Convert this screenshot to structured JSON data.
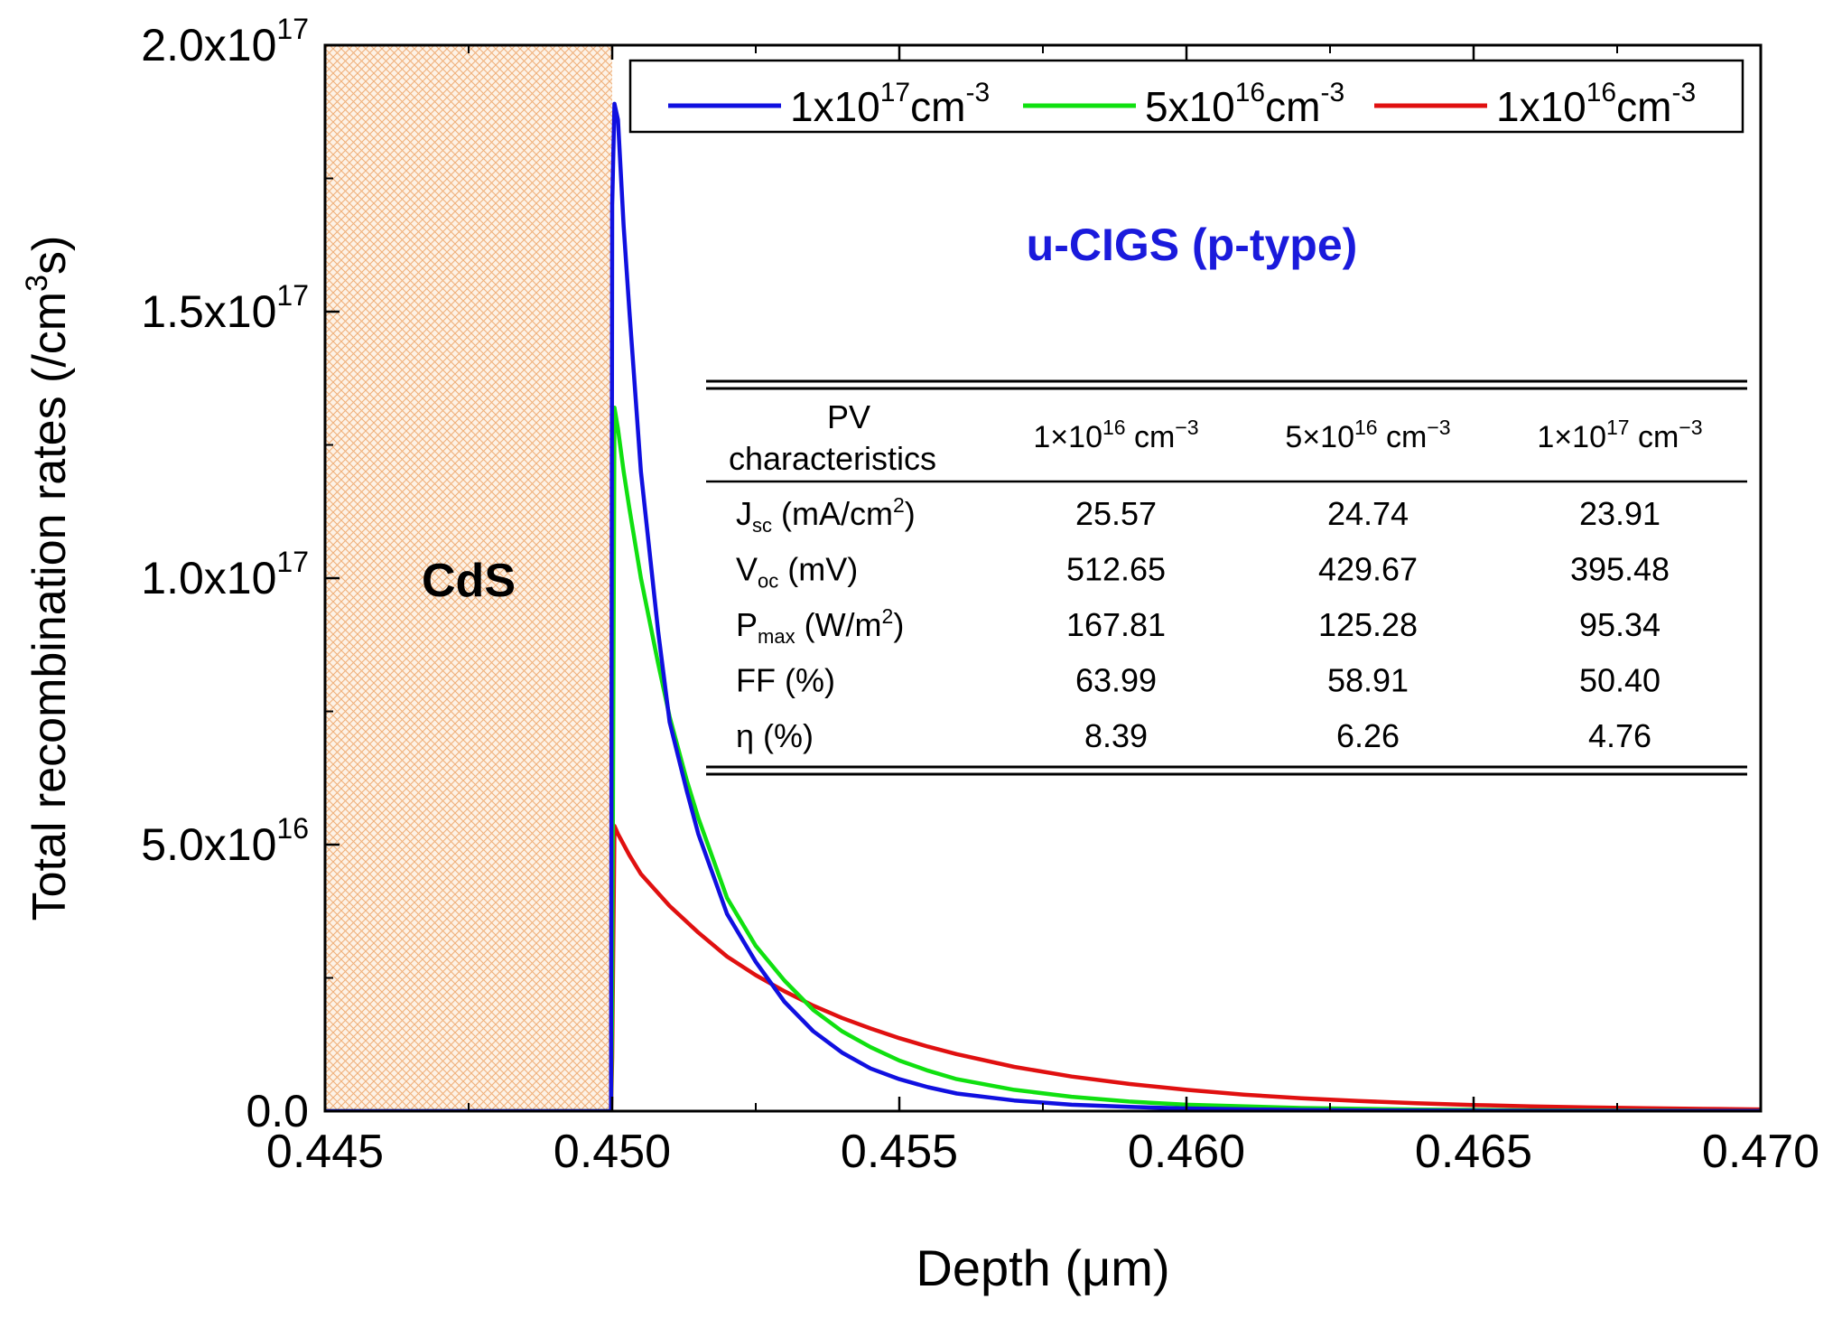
{
  "chart_data": {
    "type": "line",
    "xlabel": "Depth (μm)",
    "ylabel": "Total recombination rates (/cm³s)",
    "xlim": [
      0.445,
      0.47
    ],
    "ylim": [
      0,
      2e+17
    ],
    "x_ticks": [
      "0.445",
      "0.450",
      "0.455",
      "0.460",
      "0.465",
      "0.470"
    ],
    "x_tick_values": [
      0.445,
      0.45,
      0.455,
      0.46,
      0.465,
      0.47
    ],
    "y_ticks": [
      {
        "value": 0,
        "mantissa": "0.0",
        "exp": ""
      },
      {
        "value": 5e+16,
        "mantissa": "5.0x10",
        "exp": "16"
      },
      {
        "value": 1e+17,
        "mantissa": "1.0x10",
        "exp": "17"
      },
      {
        "value": 1.5e+17,
        "mantissa": "1.5x10",
        "exp": "17"
      },
      {
        "value": 2e+17,
        "mantissa": "2.0x10",
        "exp": "17"
      }
    ],
    "region_label": "CdS",
    "region_range": [
      0.445,
      0.45
    ],
    "annotation": "u-CIGS (p-type)",
    "annotation_color": "#1a1adc",
    "series": [
      {
        "name": "1x10¹⁷cm⁻³",
        "legend_base": "1x10",
        "legend_exp": "17",
        "legend_unit": "cm",
        "legend_unit_exp": "-3",
        "color": "#1010e0",
        "x": [
          0.445,
          0.44998,
          0.45,
          0.45004,
          0.4501,
          0.4502,
          0.4503,
          0.4505,
          0.4508,
          0.451,
          0.4513,
          0.4515,
          0.4518,
          0.452,
          0.4525,
          0.453,
          0.4535,
          0.454,
          0.4545,
          0.455,
          0.4555,
          0.456,
          0.457,
          0.458,
          0.459,
          0.46,
          0.462,
          0.464,
          0.466,
          0.468,
          0.47
        ],
        "values": [
          0,
          0,
          1.7e+17,
          1.89e+17,
          1.86e+17,
          1.66e+17,
          1.5e+17,
          1.2e+17,
          9e+16,
          7.3e+16,
          6e+16,
          5.2e+16,
          4.3e+16,
          3.7e+16,
          2.8e+16,
          2.05e+16,
          1.5e+16,
          1.1e+16,
          8000000000000000.0,
          6000000000000000.0,
          4500000000000000.0,
          3300000000000000.0,
          2000000000000000.0,
          1200000000000000.0,
          800000000000000.0,
          500000000000000.0,
          200000000000000.0,
          100000000000000.0,
          50000000000000.0,
          20000000000000.0,
          10000000000000.0
        ]
      },
      {
        "name": "5x10¹⁶cm⁻³",
        "legend_base": "5x10",
        "legend_exp": "16",
        "legend_unit": "cm",
        "legend_unit_exp": "-3",
        "color": "#10e010",
        "x": [
          0.445,
          0.44998,
          0.45,
          0.45004,
          0.4501,
          0.4502,
          0.4503,
          0.4505,
          0.4508,
          0.451,
          0.4513,
          0.4515,
          0.4518,
          0.452,
          0.4525,
          0.453,
          0.4535,
          0.454,
          0.4545,
          0.455,
          0.4555,
          0.456,
          0.457,
          0.458,
          0.459,
          0.46,
          0.462,
          0.464,
          0.466,
          0.468,
          0.47
        ],
        "values": [
          0,
          0,
          2e+16,
          1.32e+17,
          1.28e+17,
          1.2e+17,
          1.13e+17,
          1e+17,
          8.4e+16,
          7.4e+16,
          6.2e+16,
          5.5e+16,
          4.6e+16,
          4e+16,
          3.1e+16,
          2.45e+16,
          1.9e+16,
          1.5e+16,
          1.2e+16,
          9500000000000000.0,
          7600000000000000.0,
          6000000000000000.0,
          4000000000000000.0,
          2700000000000000.0,
          1800000000000000.0,
          1200000000000000.0,
          600000000000000.0,
          300000000000000.0,
          150000000000000.0,
          80000000000000.0,
          40000000000000.0
        ]
      },
      {
        "name": "1x10¹⁶cm⁻³",
        "legend_base": "1x10",
        "legend_exp": "16",
        "legend_unit": "cm",
        "legend_unit_exp": "-3",
        "color": "#e01010",
        "x": [
          0.445,
          0.44998,
          0.45,
          0.45004,
          0.4501,
          0.4503,
          0.4505,
          0.451,
          0.4515,
          0.452,
          0.4525,
          0.453,
          0.4535,
          0.454,
          0.4545,
          0.455,
          0.4555,
          0.456,
          0.457,
          0.458,
          0.459,
          0.46,
          0.461,
          0.462,
          0.463,
          0.464,
          0.465,
          0.466,
          0.467,
          0.468,
          0.469,
          0.47
        ],
        "values": [
          0,
          0,
          1e+16,
          5.35e+16,
          5.2e+16,
          4.8e+16,
          4.45e+16,
          3.85e+16,
          3.35e+16,
          2.9e+16,
          2.55e+16,
          2.25e+16,
          1.98e+16,
          1.75e+16,
          1.55e+16,
          1.37e+16,
          1.21e+16,
          1.07e+16,
          8300000000000000.0,
          6500000000000000.0,
          5100000000000000.0,
          4000000000000000.0,
          3100000000000000.0,
          2400000000000000.0,
          1900000000000000.0,
          1500000000000000.0,
          1150000000000000.0,
          900000000000000.0,
          700000000000000.0,
          550000000000000.0,
          420000000000000.0,
          330000000000000.0
        ]
      }
    ]
  },
  "table": {
    "header": {
      "row_label_line1": "PV",
      "row_label_line2": "characteristics",
      "cols": [
        {
          "base": "1×10",
          "exp": "16",
          "unit": " cm",
          "unit_exp": "−3"
        },
        {
          "base": "5×10",
          "exp": "16",
          "unit": " cm",
          "unit_exp": "−3"
        },
        {
          "base": "1×10",
          "exp": "17",
          "unit": " cm",
          "unit_exp": "−3"
        }
      ]
    },
    "rows": [
      {
        "sym": "J",
        "sub": "sc",
        "unit_pre": " (mA/cm",
        "unit_sup": "2",
        "unit_post": ")",
        "values": [
          "25.57",
          "24.74",
          "23.91"
        ]
      },
      {
        "sym": "V",
        "sub": "oc",
        "unit_pre": " (mV)",
        "unit_sup": "",
        "unit_post": "",
        "values": [
          "512.65",
          "429.67",
          "395.48"
        ]
      },
      {
        "sym": "P",
        "sub": "max",
        "unit_pre": " (W/m",
        "unit_sup": "2",
        "unit_post": ")",
        "values": [
          "167.81",
          "125.28",
          "95.34"
        ]
      },
      {
        "sym": "FF (%)",
        "sub": "",
        "unit_pre": "",
        "unit_sup": "",
        "unit_post": "",
        "values": [
          "63.99",
          "58.91",
          "50.40"
        ]
      },
      {
        "sym": "η (%)",
        "sub": "",
        "unit_pre": "",
        "unit_sup": "",
        "unit_post": "",
        "values": [
          "8.39",
          "6.26",
          "4.76"
        ]
      }
    ]
  }
}
